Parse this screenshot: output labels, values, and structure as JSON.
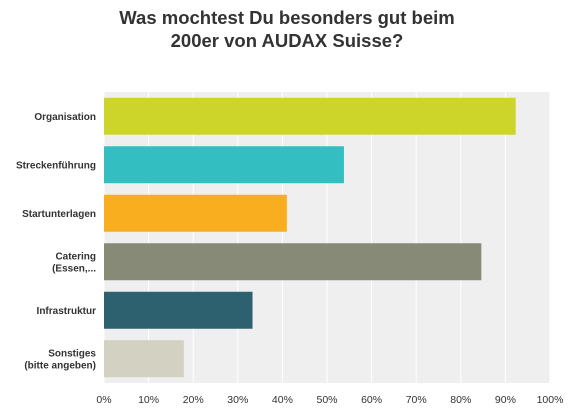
{
  "chart_data": {
    "type": "bar",
    "orientation": "horizontal",
    "title_lines": [
      "Was mochtest Du besonders gut beim",
      "200er von AUDAX Suisse?"
    ],
    "categories": [
      [
        "Organisation"
      ],
      [
        "Streckenführung"
      ],
      [
        "Startunterlagen"
      ],
      [
        "Catering",
        "(Essen,..."
      ],
      [
        "Infrastruktur"
      ],
      [
        "Sonstiges",
        "(bitte angeben)"
      ]
    ],
    "values": [
      92.3,
      53.8,
      41.0,
      84.6,
      33.3,
      17.9
    ],
    "colors": [
      "#cdd52a",
      "#33bfc1",
      "#f8ae1f",
      "#888a78",
      "#2e6170",
      "#d3d1c2"
    ],
    "xlim": [
      0,
      100
    ],
    "xticks": [
      0,
      10,
      20,
      30,
      40,
      50,
      60,
      70,
      80,
      90,
      100
    ],
    "tick_suffix": "%",
    "plot_background": "#efefef",
    "grid": true
  }
}
